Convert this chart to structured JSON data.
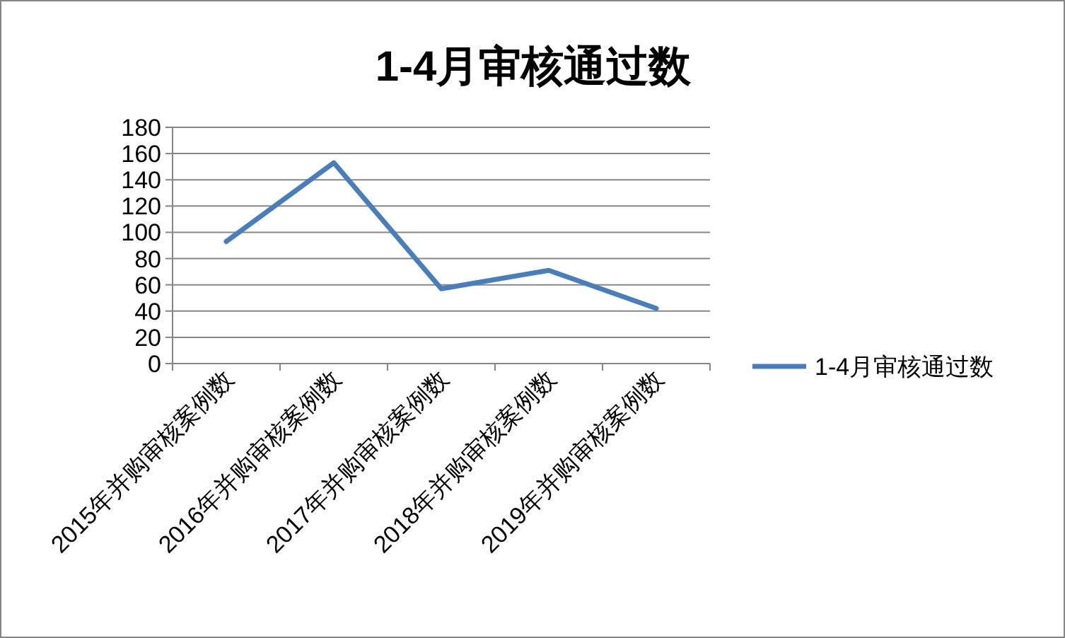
{
  "chart_data": {
    "type": "line",
    "title": "1-4月审核通过数",
    "categories": [
      "2015年并购审核案例数",
      "2016年并购审核案例数",
      "2017年并购审核案例数",
      "2018年并购审核案例数",
      "2019年并购审核案例数"
    ],
    "series": [
      {
        "name": "1-4月审核通过数",
        "color": "#4a7ebb",
        "values": [
          93,
          153,
          57,
          71,
          42
        ]
      }
    ],
    "ylim": [
      0,
      180
    ],
    "yticks": [
      0,
      20,
      40,
      60,
      80,
      100,
      120,
      140,
      160,
      180
    ],
    "grid": "y",
    "legend": "right",
    "marker": "none",
    "line_style": "solid"
  }
}
